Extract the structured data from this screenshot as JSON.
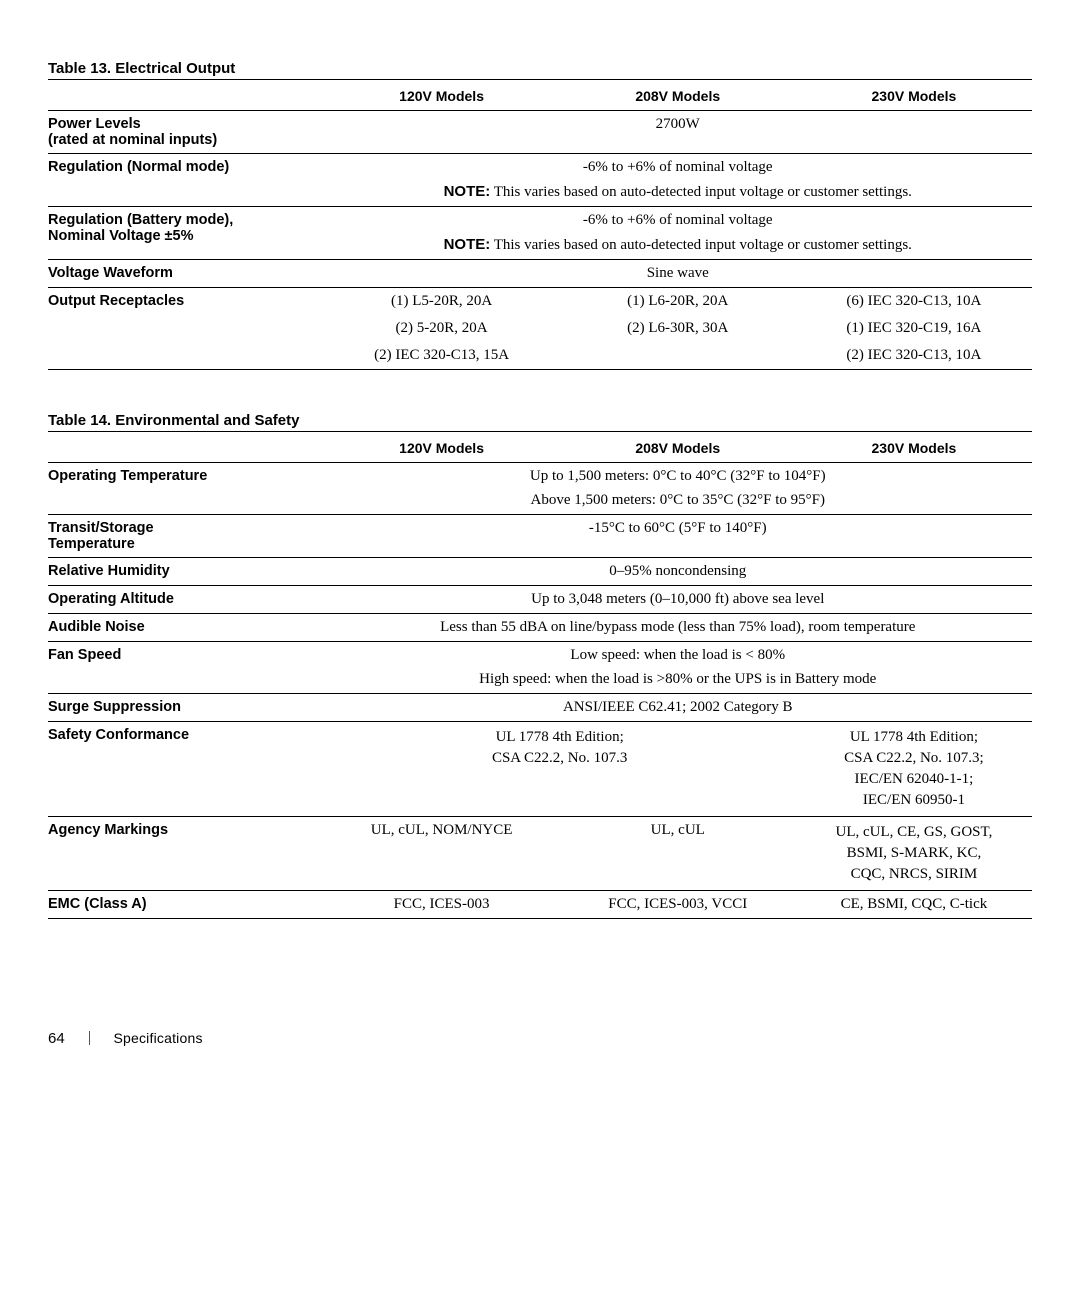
{
  "table13": {
    "title": "Table 13. Electrical Output",
    "headers": [
      "120V Models",
      "208V Models",
      "230V Models"
    ],
    "rows": {
      "power_levels": {
        "label": "Power Levels\n(rated at nominal inputs)",
        "value": "2700W"
      },
      "regulation_normal": {
        "label": "Regulation (Normal mode)",
        "line1": "-6% to +6% of nominal voltage",
        "note_label": "NOTE:",
        "note_text": " This varies based on auto-detected input voltage or customer settings."
      },
      "regulation_battery": {
        "label": "Regulation (Battery mode),\nNominal Voltage ±5%",
        "line1": "-6% to +6% of nominal voltage",
        "note_label": "NOTE:",
        "note_text": " This varies based on auto-detected input voltage or customer settings."
      },
      "voltage_waveform": {
        "label": "Voltage Waveform",
        "value": "Sine wave"
      },
      "output_receptacles": {
        "label": "Output Receptacles",
        "c120": [
          "(1) L5-20R, 20A",
          "(2) 5-20R, 20A",
          "(2) IEC 320-C13, 15A"
        ],
        "c208": [
          "(1) L6-20R, 20A",
          "(2) L6-30R, 30A",
          ""
        ],
        "c230": [
          "(6) IEC 320-C13, 10A",
          "(1) IEC 320-C19, 16A",
          "(2) IEC 320-C13, 10A"
        ]
      }
    }
  },
  "table14": {
    "title": "Table 14. Environmental and Safety",
    "headers": [
      "120V Models",
      "208V Models",
      "230V Models"
    ],
    "rows": {
      "operating_temperature": {
        "label": "Operating Temperature",
        "line1": "Up to 1,500 meters: 0°C to 40°C (32°F to 104°F)",
        "line2": "Above 1,500 meters: 0°C to 35°C (32°F to 95°F)"
      },
      "transit_storage_temperature": {
        "label": "Transit/Storage\nTemperature",
        "value": "-15°C to 60°C (5°F to 140°F)"
      },
      "relative_humidity": {
        "label": "Relative Humidity",
        "value": "0–95% noncondensing"
      },
      "operating_altitude": {
        "label": "Operating Altitude",
        "value": "Up to 3,048 meters (0–10,000 ft) above sea level"
      },
      "audible_noise": {
        "label": "Audible Noise",
        "value": "Less than 55 dBA on line/bypass mode (less than 75% load), room temperature"
      },
      "fan_speed": {
        "label": "Fan Speed",
        "line1": "Low speed: when the load is < 80%",
        "line2": "High speed: when the load is >80% or the UPS is in Battery mode"
      },
      "surge_suppression": {
        "label": "Surge Suppression",
        "value": "ANSI/IEEE C62.41; 2002 Category B"
      },
      "safety_conformance": {
        "label": "Safety Conformance",
        "left": "UL 1778 4th Edition;\nCSA C22.2, No. 107.3",
        "right": "UL 1778 4th Edition;\nCSA C22.2, No. 107.3;\nIEC/EN 62040-1-1;\nIEC/EN 60950-1"
      },
      "agency_markings": {
        "label": "Agency Markings",
        "c1": "UL, cUL, NOM/NYCE",
        "c2": "UL, cUL",
        "c3": "UL, cUL, CE, GS, GOST,\nBSMI, S-MARK, KC,\nCQC, NRCS, SIRIM"
      },
      "emc": {
        "label": "EMC (Class A)",
        "c1": "FCC, ICES-003",
        "c2": "FCC, ICES-003, VCCI",
        "c3": "CE, BSMI, CQC, C-tick"
      }
    }
  },
  "footer": {
    "page": "64",
    "section": "Specifications"
  }
}
